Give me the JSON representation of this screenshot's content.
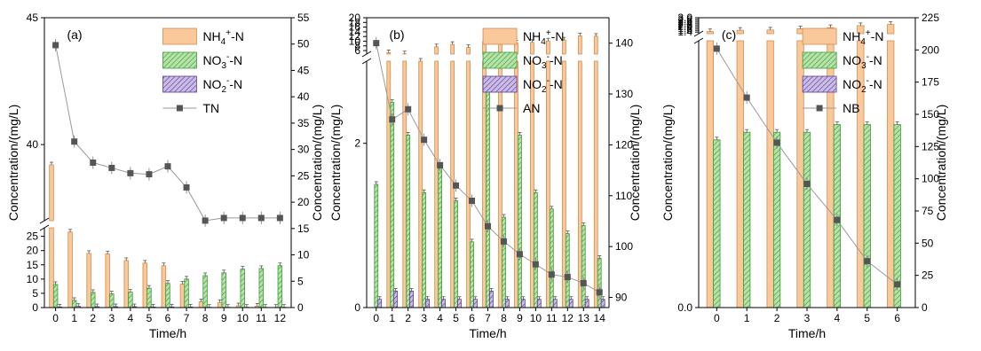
{
  "colors": {
    "nh4_fill": "#f9c89b",
    "nh4_stroke": "#d98a4a",
    "no3_fill": "#b6e3a8",
    "no3_stroke": "#3f9a3a",
    "no2_fill": "#cbbde6",
    "no2_stroke": "#5b3f9a",
    "line": "#9a9a9a",
    "marker": "#555555"
  },
  "chart_data": [
    {
      "type": "bar",
      "panel_label": "(a)",
      "xlabel": "Time/h",
      "ylabel_left": "Concentration/(mg/L)",
      "ylabel_right": "Concentration/(mg/L)",
      "x_ticks": [
        "0",
        "1",
        "2",
        "3",
        "4",
        "5",
        "6",
        "7",
        "8",
        "9",
        "10",
        "11",
        "12"
      ],
      "y_left_lower": {
        "range": [
          0,
          28
        ],
        "ticks": [
          "0",
          "5",
          "10",
          "15",
          "20",
          "25"
        ]
      },
      "y_left_upper": {
        "range": [
          37,
          45
        ],
        "ticks": [
          "40",
          "45"
        ]
      },
      "y_right": {
        "range": [
          0,
          55
        ],
        "ticks": [
          "0",
          "5",
          "10",
          "15",
          "20",
          "25",
          "30",
          "35",
          "40",
          "45",
          "50",
          "55"
        ]
      },
      "legend": {
        "nh4": "NH4+-N",
        "no3": "NO3--N",
        "no2": "NO2--N",
        "line": "TN"
      },
      "series": [
        {
          "name": "NH4+-N",
          "values": [
            39.2,
            26.5,
            19.0,
            18.8,
            16.5,
            15.6,
            14.7,
            8.2,
            2.0,
            1.8,
            0.6,
            0.5,
            0.1
          ]
        },
        {
          "name": "NO3--N",
          "values": [
            8.1,
            2.5,
            5.3,
            4.8,
            5.4,
            6.8,
            8.5,
            10.0,
            11.2,
            12.2,
            13.5,
            13.7,
            14.7
          ]
        },
        {
          "name": "NO2--N",
          "values": [
            0.2,
            0.4,
            0.3,
            0.3,
            0.3,
            0.2,
            0.2,
            0.2,
            0.1,
            0.1,
            0.1,
            0.1,
            0.1
          ]
        },
        {
          "name": "TN",
          "values": [
            49.8,
            31.5,
            27.5,
            26.5,
            25.5,
            25.3,
            26.8,
            22.8,
            16.5,
            17.0,
            17.0,
            17.0,
            17.0
          ]
        }
      ]
    },
    {
      "type": "bar",
      "panel_label": "(b)",
      "xlabel": "Time/h",
      "ylabel_left": "Concentration/(mg/L)",
      "ylabel_right": "Concentration/(mg/L)",
      "x_ticks": [
        "0",
        "1",
        "2",
        "3",
        "4",
        "5",
        "6",
        "7",
        "8",
        "9",
        "10",
        "11",
        "12",
        "13",
        "14"
      ],
      "y_left_lower": {
        "range": [
          0,
          3
        ],
        "ticks": [
          "0",
          "2"
        ]
      },
      "y_left_upper": {
        "range": [
          4.5,
          20
        ],
        "ticks": [
          "6",
          "8",
          "10",
          "12",
          "14",
          "16",
          "18",
          "20"
        ]
      },
      "y_right": {
        "range": [
          88,
          145
        ],
        "ticks": [
          "90",
          "100",
          "110",
          "120",
          "130",
          "140"
        ]
      },
      "legend": {
        "nh4": "NH4+-N",
        "no3": "NO3--N",
        "no2": "NO2--N",
        "line": "AN"
      },
      "series": [
        {
          "name": "NH4+-N",
          "values": [
            0,
            5.1,
            4.6,
            4.4,
            7.6,
            8.6,
            7.3,
            9.8,
            8.9,
            9.2,
            9.5,
            10.1,
            10.5,
            12.3,
            12.1
          ]
        },
        {
          "name": "NO3--N",
          "values": [
            1.5,
            2.5,
            2.1,
            1.4,
            1.7,
            1.3,
            0.8,
            2.7,
            1.1,
            2.1,
            1.4,
            1.2,
            0.9,
            1.0,
            0.6
          ]
        },
        {
          "name": "NO2--N",
          "values": [
            0.1,
            0.2,
            0.2,
            0.1,
            0.1,
            0.1,
            0.1,
            0.2,
            0.1,
            0.1,
            0.1,
            0.1,
            0.1,
            0.1,
            0.1
          ]
        },
        {
          "name": "AN",
          "values": [
            140,
            125,
            127,
            121,
            116,
            112,
            109,
            104,
            101,
            98.5,
            96.5,
            94.5,
            94.0,
            92.8,
            91.0
          ]
        }
      ]
    },
    {
      "type": "bar",
      "panel_label": "(c)",
      "xlabel": "Time/h",
      "ylabel_left": "Concentration/(mg/L)",
      "ylabel_right": "Concentration/(mg/L)",
      "x_ticks": [
        "0",
        "1",
        "2",
        "3",
        "4",
        "5",
        "6"
      ],
      "y_left_lower": {
        "range": [
          0,
          0.35
        ],
        "ticks": [
          "0.0"
        ]
      },
      "y_left_upper": {
        "range": [
          1.22,
          3.0
        ],
        "ticks": [
          "1.4",
          "1.6",
          "1.8",
          "2.0",
          "2.2",
          "2.4",
          "2.6",
          "2.8",
          "3.0"
        ]
      },
      "y_right": {
        "range": [
          0,
          225
        ],
        "ticks": [
          "0",
          "25",
          "50",
          "75",
          "100",
          "125",
          "150",
          "175",
          "200",
          "225"
        ]
      },
      "legend": {
        "nh4": "NH4+-N",
        "no3": "NO3--N",
        "no2": "NO2--N",
        "line": "NB"
      },
      "series": [
        {
          "name": "NH4+-N",
          "values": [
            1.45,
            1.6,
            1.63,
            1.77,
            1.9,
            2.12,
            2.25
          ]
        },
        {
          "name": "NO3--N",
          "values": [
            0.22,
            0.23,
            0.23,
            0.23,
            0.24,
            0.24,
            0.24
          ]
        },
        {
          "name": "NO2--N",
          "values": [
            0.0,
            0.0,
            0.0,
            0.0,
            0.0,
            0.0,
            0.0
          ]
        },
        {
          "name": "NB",
          "values": [
            201,
            163,
            128,
            96,
            68,
            36,
            18
          ]
        }
      ]
    }
  ]
}
